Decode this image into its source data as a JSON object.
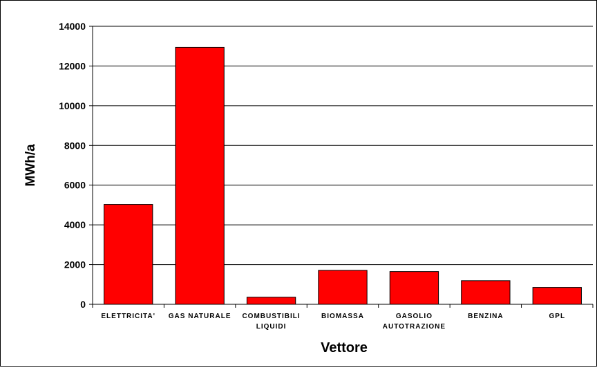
{
  "chart_data": {
    "type": "bar",
    "title": "",
    "xlabel": "Vettore",
    "ylabel": "MWh/a",
    "ylim": [
      0,
      14000
    ],
    "yticks": [
      0,
      2000,
      4000,
      6000,
      8000,
      10000,
      12000,
      14000
    ],
    "grid": true,
    "legend": "none",
    "bar_color": "#ff0000",
    "bar_edge_color": "#000000",
    "categories": [
      [
        "ELETTRICITA'"
      ],
      [
        "GAS NATURALE"
      ],
      [
        "COMBUSTIBILI",
        "LIQUIDI"
      ],
      [
        "BIOMASSA"
      ],
      [
        "GASOLIO",
        "AUTOTRAZIONE"
      ],
      [
        "BENZINA"
      ],
      [
        "GPL"
      ]
    ],
    "values": [
      5030,
      12940,
      360,
      1710,
      1650,
      1190,
      850
    ]
  }
}
